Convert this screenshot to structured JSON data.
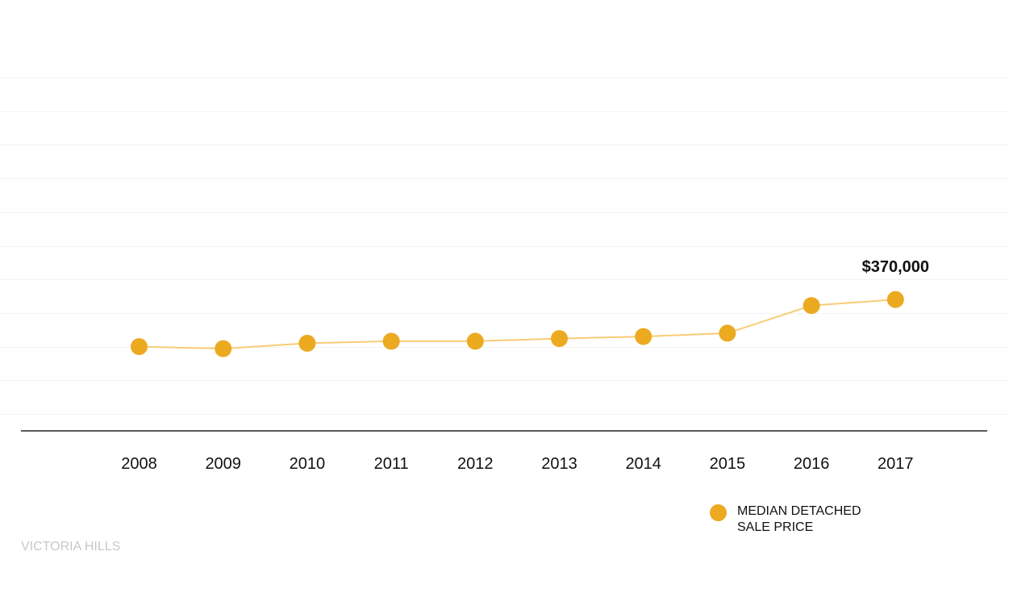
{
  "chart_data": {
    "type": "line",
    "categories": [
      "2008",
      "2009",
      "2010",
      "2011",
      "2012",
      "2013",
      "2014",
      "2015",
      "2016",
      "2017"
    ],
    "series": [
      {
        "name": "MEDIAN DETACHED SALE PRICE",
        "values": [
          300000,
          297000,
          305000,
          308000,
          308000,
          312000,
          315000,
          320000,
          361000,
          370000
        ],
        "color": "#f9cc76",
        "marker_color": "#ecaa21"
      }
    ],
    "ylim": [
      200000,
      700000
    ],
    "grid": "horizontal",
    "annotation": {
      "category": "2017",
      "text": "$370,000"
    },
    "legend": {
      "position": "bottom-right",
      "label_line1": "MEDIAN DETACHED",
      "label_line2": "SALE PRICE"
    },
    "source_label": "VICTORIA HILLS"
  }
}
